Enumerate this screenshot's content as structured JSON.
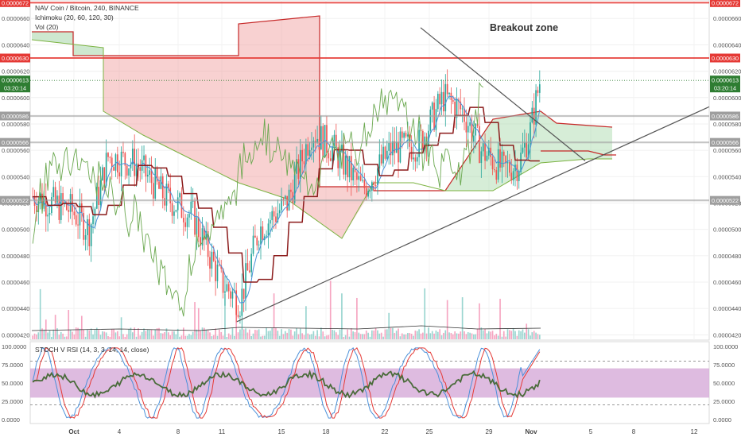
{
  "header": {
    "symbol_line": "NAV Coin / Bitcoin, 240, BINANCE",
    "indicator_ichimoku": "Ichimoku (20, 60, 120, 30)",
    "indicator_volume": "Vol (20)",
    "annotation": "Breakout zone",
    "osc_label": "STOCH V RSI (14, 3, 3, 14, 14, close)"
  },
  "price_axis": {
    "ticks": [
      "0.0000660",
      "0.0000640",
      "0.0000620",
      "0.0000600",
      "0.0000580",
      "0.0000560",
      "0.0000540",
      "0.0000520",
      "0.0000500",
      "0.0000480",
      "0.0000460",
      "0.0000440",
      "0.0000420"
    ],
    "values": [
      6.6e-05,
      6.4e-05,
      6.2e-05,
      6e-05,
      5.8e-05,
      5.6e-05,
      5.4e-05,
      5.2e-05,
      5e-05,
      4.8e-05,
      4.6e-05,
      4.4e-05,
      4.2e-05
    ]
  },
  "level_badges": [
    {
      "label": "0.0000672",
      "value": 6.72e-05,
      "color": "#e53935"
    },
    {
      "label": "0.0000630",
      "value": 6.3e-05,
      "color": "#e53935"
    },
    {
      "label": "0.0000586",
      "value": 5.86e-05,
      "color": "#9e9e9e"
    },
    {
      "label": "0.0000566",
      "value": 5.66e-05,
      "color": "#9e9e9e"
    },
    {
      "label": "0.0000522",
      "value": 5.22e-05,
      "color": "#9e9e9e"
    }
  ],
  "price_badge": {
    "label": "0.0000613",
    "time": "03:20:14",
    "value": 6.13e-05,
    "color": "#2e7d32"
  },
  "osc_axis": {
    "ticks": [
      "100.0000",
      "75.0000",
      "50.0000",
      "25.0000",
      "0.0000"
    ],
    "values": [
      100,
      75,
      50,
      25,
      0
    ]
  },
  "time_axis": {
    "labels": [
      "Oct",
      "4",
      "8",
      "11",
      "15",
      "18",
      "22",
      "25",
      "29",
      "Nov",
      "5",
      "8",
      "12"
    ]
  },
  "colors": {
    "up": "#26a69a",
    "down": "#ef5350",
    "kumo_bull": "#a5d6a7",
    "kumo_bear": "#ef9a9a",
    "kijun": "#8b1a1a",
    "tenkan": "#4a90d9",
    "chikou": "#6aa84f",
    "stoch_k": "#4a90d9",
    "stoch_d": "#e53935",
    "rsi": "#4a6b3a",
    "osc_band": "#d3a4d6"
  },
  "chart_data": {
    "type": "candlestick",
    "title": "NAV Coin / Bitcoin, 240, BINANCE",
    "ylim": [
      4.16e-05,
      6.74e-05
    ],
    "horizontal_levels": [
      6.72e-05,
      6.3e-05,
      6.13e-05,
      5.86e-05,
      5.66e-05,
      5.22e-05
    ],
    "trendlines": [
      {
        "name": "descending",
        "from": {
          "x": "Oct 24",
          "y": 6.53e-05
        },
        "to": {
          "x": "Nov 3",
          "y": 5.52e-05
        }
      },
      {
        "name": "ascending",
        "from": {
          "x": "Oct 11",
          "y": 4.3e-05
        },
        "to": {
          "x": "Nov 13",
          "y": 5.93e-05
        }
      }
    ],
    "oscillator": {
      "name": "STOCH V RSI",
      "ylim": [
        0,
        100
      ],
      "band": [
        30,
        70
      ],
      "levels": [
        20,
        80
      ]
    }
  }
}
